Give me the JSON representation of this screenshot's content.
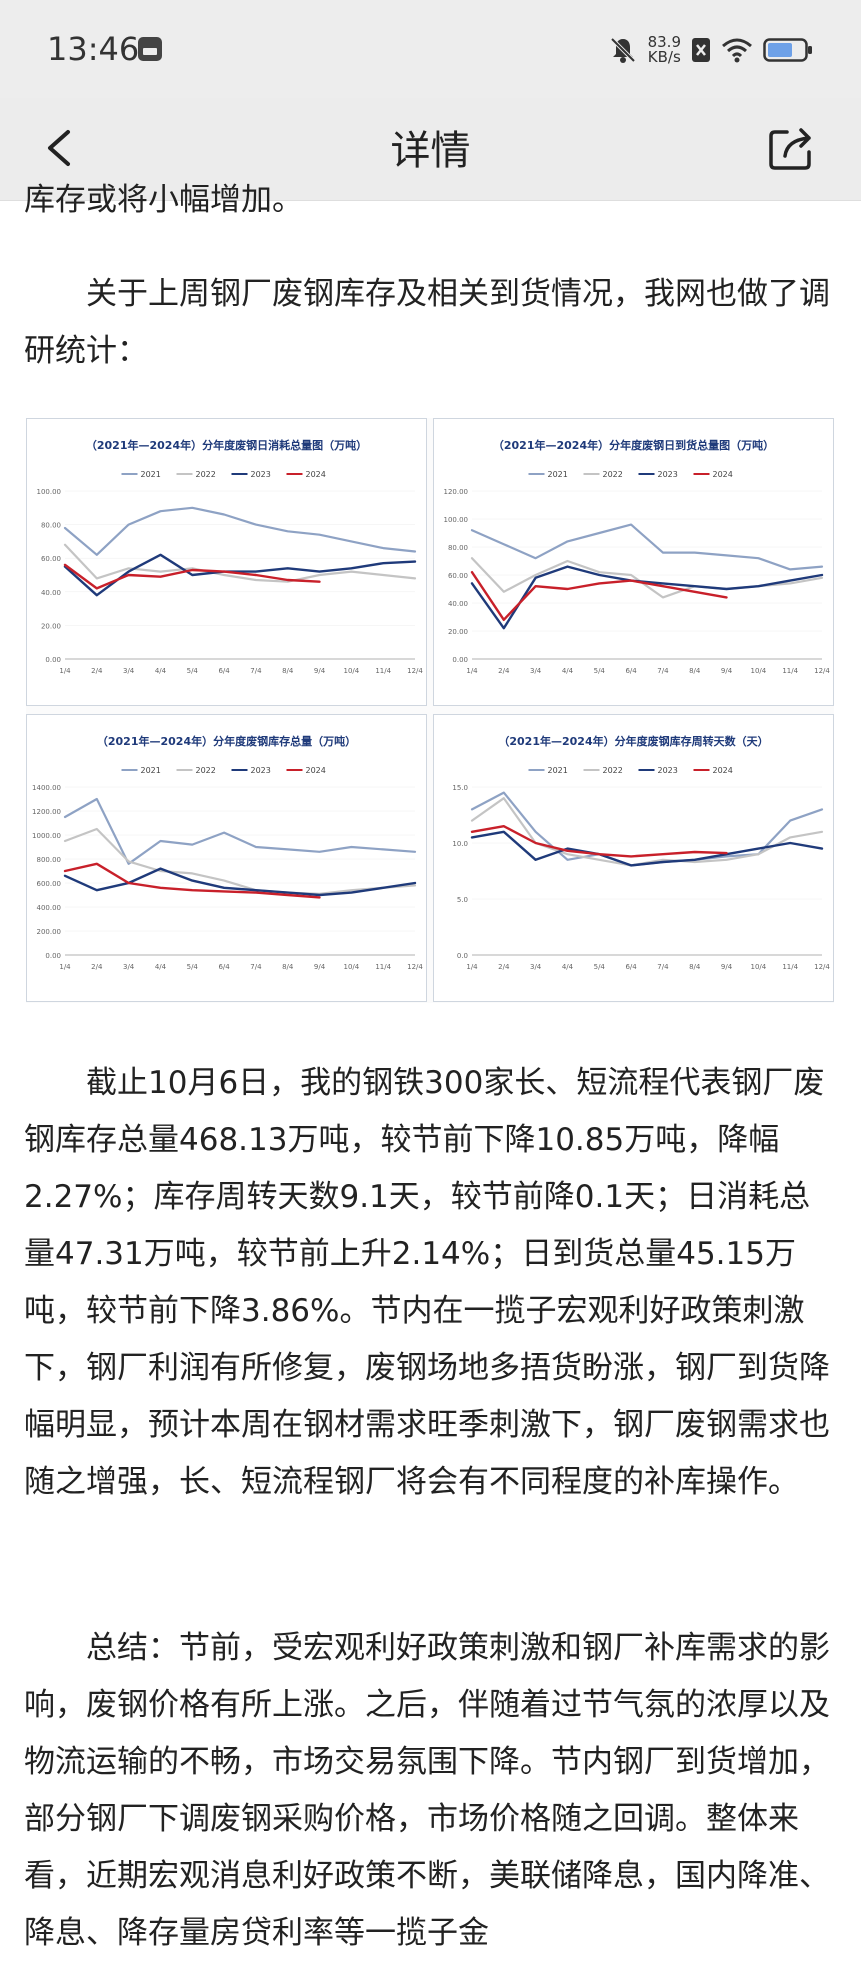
{
  "status_bar": {
    "time": "13:46",
    "net_speed_value": "83.9",
    "net_speed_unit": "KB/s"
  },
  "header": {
    "title": "详情"
  },
  "article": {
    "cut_line": "库存或将小幅增加。",
    "survey_intro": "关于上周钢厂废钢库存及相关到货情况，我网也做了调研统计：",
    "stock_paragraph": "截止10月6日，我的钢铁300家长、短流程代表钢厂废钢库存总量468.13万吨，较节前下降10.85万吨，降幅2.27%；库存周转天数9.1天，较节前降0.1天；日消耗总量47.31万吨，较节前上升2.14%；日到货总量45.15万吨，较节前下降3.86%。节内在一揽子宏观利好政策刺激下，钢厂利润有所修复，废钢场地多捂货盼涨，钢厂到货降幅明显，预计本周在钢材需求旺季刺激下，钢厂废钢需求也随之增强，长、短流程钢厂将会有不同程度的补库操作。",
    "summary_paragraph": "总结：节前，受宏观利好政策刺激和钢厂补库需求的影响，废钢价格有所上涨。之后，伴随着过节气氛的浓厚以及物流运输的不畅，市场交易氛围下降。节内钢厂到货增加，部分钢厂下调废钢采购价格，市场价格随之回调。整体来看，近期宏观消息利好政策不断，美联储降息，国内降准、降息、降存量房贷利率等一揽子金"
  },
  "colors": {
    "y2021": "#8ea2c4",
    "y2022": "#c4c4c4",
    "y2023": "#1f3a7a",
    "y2024": "#c8202a",
    "title": "#1f3a7a"
  },
  "chart_data": [
    {
      "type": "line",
      "title": "（2021年—2024年）分年度废钢日消耗总量图（万吨）",
      "categories": [
        "1/4",
        "2/4",
        "3/4",
        "4/4",
        "5/4",
        "6/4",
        "7/4",
        "8/4",
        "9/4",
        "10/4",
        "11/4",
        "12/4"
      ],
      "ylim": [
        0,
        100
      ],
      "yticks": [
        "0.00",
        "20.00",
        "40.00",
        "60.00",
        "80.00",
        "100.00"
      ],
      "series": [
        {
          "name": "2021",
          "values": [
            78,
            62,
            80,
            88,
            90,
            86,
            80,
            76,
            74,
            70,
            66,
            64
          ]
        },
        {
          "name": "2022",
          "values": [
            68,
            48,
            54,
            52,
            54,
            50,
            47,
            46,
            50,
            52,
            50,
            48
          ]
        },
        {
          "name": "2023",
          "values": [
            55,
            38,
            52,
            62,
            50,
            52,
            52,
            54,
            52,
            54,
            57,
            58
          ]
        },
        {
          "name": "2024",
          "values": [
            56,
            42,
            50,
            49,
            53,
            52,
            50,
            47,
            46,
            null,
            null,
            null
          ]
        }
      ]
    },
    {
      "type": "line",
      "title": "（2021年—2024年）分年度废钢日到货总量图（万吨）",
      "categories": [
        "1/4",
        "2/4",
        "3/4",
        "4/4",
        "5/4",
        "6/4",
        "7/4",
        "8/4",
        "9/4",
        "10/4",
        "11/4",
        "12/4"
      ],
      "ylim": [
        0,
        120
      ],
      "yticks": [
        "0.00",
        "20.00",
        "40.00",
        "60.00",
        "80.00",
        "100.00",
        "120.00"
      ],
      "series": [
        {
          "name": "2021",
          "values": [
            92,
            82,
            72,
            84,
            90,
            96,
            76,
            76,
            74,
            72,
            64,
            66
          ]
        },
        {
          "name": "2022",
          "values": [
            72,
            48,
            60,
            70,
            62,
            60,
            44,
            52,
            50,
            52,
            54,
            58
          ]
        },
        {
          "name": "2023",
          "values": [
            54,
            22,
            58,
            66,
            60,
            56,
            54,
            52,
            50,
            52,
            56,
            60
          ]
        },
        {
          "name": "2024",
          "values": [
            62,
            28,
            52,
            50,
            54,
            56,
            52,
            48,
            44,
            null,
            null,
            null
          ]
        }
      ]
    },
    {
      "type": "line",
      "title": "（2021年—2024年）分年度废钢库存总量（万吨）",
      "categories": [
        "1/4",
        "2/4",
        "3/4",
        "4/4",
        "5/4",
        "6/4",
        "7/4",
        "8/4",
        "9/4",
        "10/4",
        "11/4",
        "12/4"
      ],
      "ylim": [
        0,
        1400
      ],
      "yticks": [
        "0.00",
        "200.00",
        "400.00",
        "600.00",
        "800.00",
        "1000.00",
        "1200.00",
        "1400.00"
      ],
      "series": [
        {
          "name": "2021",
          "values": [
            1150,
            1300,
            760,
            950,
            920,
            1020,
            900,
            880,
            860,
            900,
            880,
            860
          ]
        },
        {
          "name": "2022",
          "values": [
            950,
            1050,
            780,
            700,
            680,
            620,
            540,
            520,
            510,
            540,
            560,
            580
          ]
        },
        {
          "name": "2023",
          "values": [
            660,
            540,
            600,
            720,
            620,
            560,
            540,
            520,
            500,
            520,
            560,
            600
          ]
        },
        {
          "name": "2024",
          "values": [
            700,
            760,
            600,
            560,
            540,
            530,
            520,
            500,
            480,
            null,
            null,
            null
          ]
        }
      ]
    },
    {
      "type": "line",
      "title": "（2021年—2024年）分年度废钢库存周转天数（天）",
      "categories": [
        "1/4",
        "2/4",
        "3/4",
        "4/4",
        "5/4",
        "6/4",
        "7/4",
        "8/4",
        "9/4",
        "10/4",
        "11/4",
        "12/4"
      ],
      "ylim": [
        0,
        15
      ],
      "yticks": [
        "0.0",
        "5.0",
        "10.0",
        "15.0"
      ],
      "series": [
        {
          "name": "2021",
          "values": [
            13,
            14.5,
            11,
            8.5,
            9,
            8,
            8.3,
            8.5,
            8.8,
            9,
            12,
            13
          ]
        },
        {
          "name": "2022",
          "values": [
            12,
            14,
            10,
            9,
            8.5,
            8,
            8.5,
            8.3,
            8.5,
            9,
            10.5,
            11
          ]
        },
        {
          "name": "2023",
          "values": [
            10.5,
            11,
            8.5,
            9.5,
            9,
            8,
            8.3,
            8.5,
            9,
            9.5,
            10,
            9.5
          ]
        },
        {
          "name": "2024",
          "values": [
            11,
            11.5,
            10,
            9.3,
            9,
            8.8,
            9,
            9.2,
            9.1,
            null,
            null,
            null
          ]
        }
      ]
    }
  ]
}
